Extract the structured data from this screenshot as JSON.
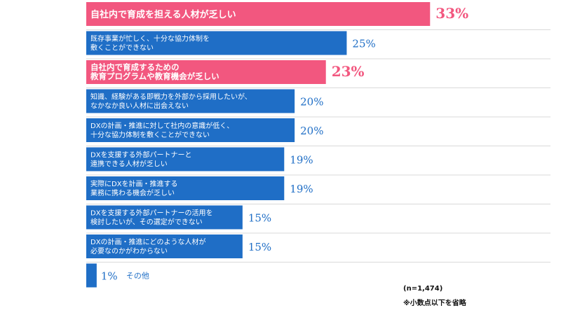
{
  "chart_data": {
    "type": "bar",
    "orientation": "horizontal",
    "xlim": [
      0,
      35
    ],
    "categories": [
      [
        "自社内で育成を担える人材が乏しい"
      ],
      [
        "既存事業が忙しく、十分な協力体制を",
        "敷くことができない"
      ],
      [
        "自社内で育成するための",
        "教育プログラムや教育機会が乏しい"
      ],
      [
        "知識、経験がある即戦力を外部から採用したいが、",
        "なかなか良い人材に出会えない"
      ],
      [
        "DXの計画・推進に対して社内の意識が低く、",
        "十分な協力体制を敷くことができない"
      ],
      [
        "DXを支援する外部パートナーと",
        "連携できる人材が乏しい"
      ],
      [
        "実際にDXを計画・推進する",
        "業務に携わる機会が乏しい"
      ],
      [
        "DXを支援する外部パートナーの活用を",
        "検討したいが、その選定ができない"
      ],
      [
        "DXの計画・推進にどのような人材が",
        "必要なのかがわからない"
      ],
      [
        "その他"
      ]
    ],
    "values": [
      33,
      25,
      23,
      20,
      20,
      19,
      19,
      15,
      15,
      1
    ],
    "value_labels": [
      "33%",
      "25%",
      "23%",
      "20%",
      "20%",
      "19%",
      "19%",
      "15%",
      "15%",
      "1%"
    ],
    "highlighted": [
      true,
      false,
      true,
      false,
      false,
      false,
      false,
      false,
      false,
      false
    ],
    "colors": {
      "highlight": "#f2577f",
      "normal": "#1f6ec6",
      "separator": "#d9d9d9"
    },
    "legend": "none",
    "grid": false
  },
  "notes": {
    "sample_size": "(n=1,474)",
    "rounding": "※小数点以下を省略"
  }
}
